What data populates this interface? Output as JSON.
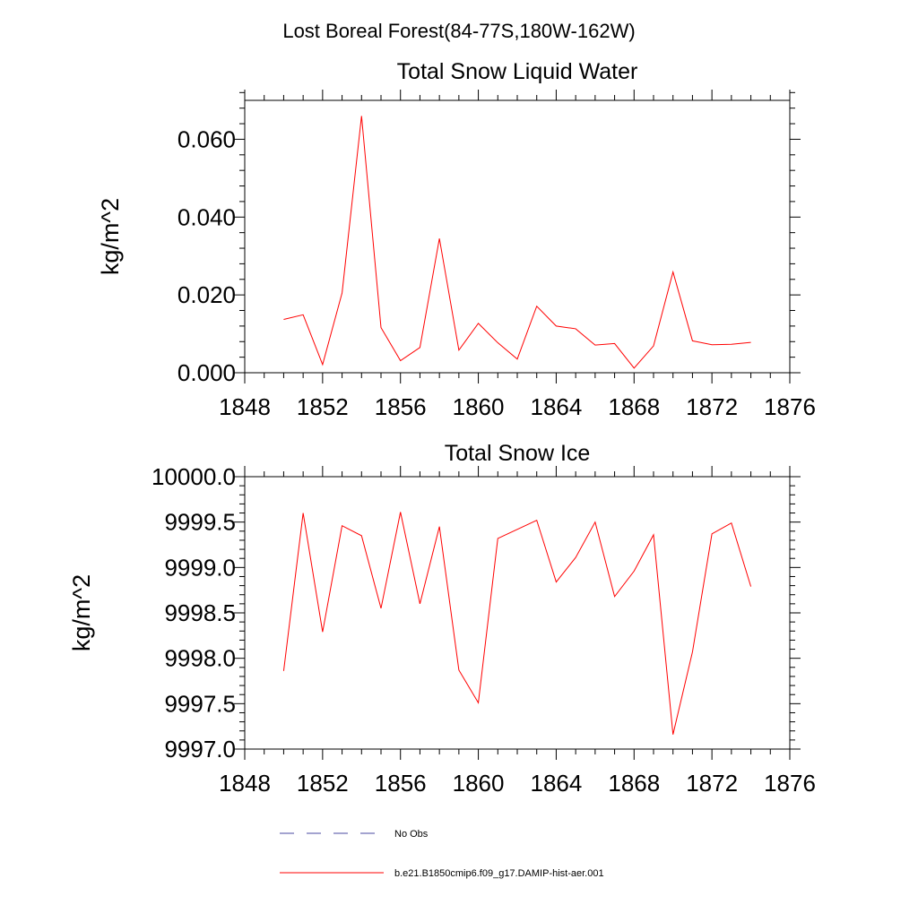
{
  "figure": {
    "suptitle": "Lost Boreal Forest(84-77S,180W-162W)"
  },
  "chart_data": [
    {
      "type": "line",
      "title": "Total Snow Liquid Water",
      "xlabel": "",
      "ylabel": "kg/m^2",
      "xlim": [
        1848,
        1876
      ],
      "ylim": [
        0.0,
        0.07
      ],
      "x_ticks": [
        1848,
        1852,
        1856,
        1860,
        1864,
        1868,
        1872,
        1876
      ],
      "x_tick_labels": [
        "1848",
        "1852",
        "1856",
        "1860",
        "1864",
        "1868",
        "1872",
        "1876"
      ],
      "y_ticks": [
        0.0,
        0.02,
        0.04,
        0.06
      ],
      "y_tick_labels": [
        "0.000",
        "0.020",
        "0.040",
        "0.060"
      ],
      "grid": false,
      "x": [
        1850,
        1851,
        1852,
        1853,
        1854,
        1855,
        1856,
        1857,
        1858,
        1859,
        1860,
        1861,
        1862,
        1863,
        1864,
        1865,
        1866,
        1867,
        1868,
        1869,
        1870,
        1871,
        1872,
        1873,
        1874
      ],
      "series": [
        {
          "name": "b.e21.B1850cmip6.f09_g17.DAMIP-hist-aer.001",
          "color": "#ff0000",
          "values": [
            0.0137,
            0.0149,
            0.0021,
            0.0205,
            0.066,
            0.0116,
            0.0031,
            0.0065,
            0.0345,
            0.0058,
            0.0127,
            0.0077,
            0.0035,
            0.0171,
            0.012,
            0.0113,
            0.0071,
            0.0075,
            0.0012,
            0.0069,
            0.0259,
            0.0082,
            0.0072,
            0.0073,
            0.0078
          ]
        }
      ]
    },
    {
      "type": "line",
      "title": "Total Snow Ice",
      "xlabel": "",
      "ylabel": "kg/m^2",
      "xlim": [
        1848,
        1876
      ],
      "ylim": [
        9997.0,
        10000.0
      ],
      "x_ticks": [
        1848,
        1852,
        1856,
        1860,
        1864,
        1868,
        1872,
        1876
      ],
      "x_tick_labels": [
        "1848",
        "1852",
        "1856",
        "1860",
        "1864",
        "1868",
        "1872",
        "1876"
      ],
      "y_ticks": [
        9997.0,
        9997.5,
        9998.0,
        9998.5,
        9999.0,
        9999.5,
        10000.0
      ],
      "y_tick_labels": [
        "9997.0",
        "9997.5",
        "9998.0",
        "9998.5",
        "9999.0",
        "9999.5",
        "10000.0"
      ],
      "grid": false,
      "x": [
        1850,
        1851,
        1852,
        1853,
        1854,
        1855,
        1856,
        1857,
        1858,
        1859,
        1860,
        1861,
        1862,
        1863,
        1864,
        1865,
        1866,
        1867,
        1868,
        1869,
        1870,
        1871,
        1872,
        1873,
        1874
      ],
      "series": [
        {
          "name": "b.e21.B1850cmip6.f09_g17.DAMIP-hist-aer.001",
          "color": "#ff0000",
          "values": [
            9997.86,
            9999.6,
            9998.29,
            9999.46,
            9999.35,
            9998.55,
            9999.61,
            9998.6,
            9999.45,
            9997.87,
            9997.51,
            9999.32,
            9999.42,
            9999.52,
            9998.84,
            9999.11,
            9999.5,
            9998.68,
            9998.96,
            9999.36,
            9997.16,
            9998.07,
            9999.37,
            9999.49,
            9998.79
          ]
        }
      ]
    }
  ],
  "legend": {
    "placement": "bottom-center",
    "entries": [
      {
        "label": "No Obs",
        "color": "#4a4aa0",
        "style": "dashed"
      },
      {
        "label": "b.e21.B1850cmip6.f09_g17.DAMIP-hist-aer.001",
        "color": "#ff0000",
        "style": "solid"
      }
    ]
  }
}
